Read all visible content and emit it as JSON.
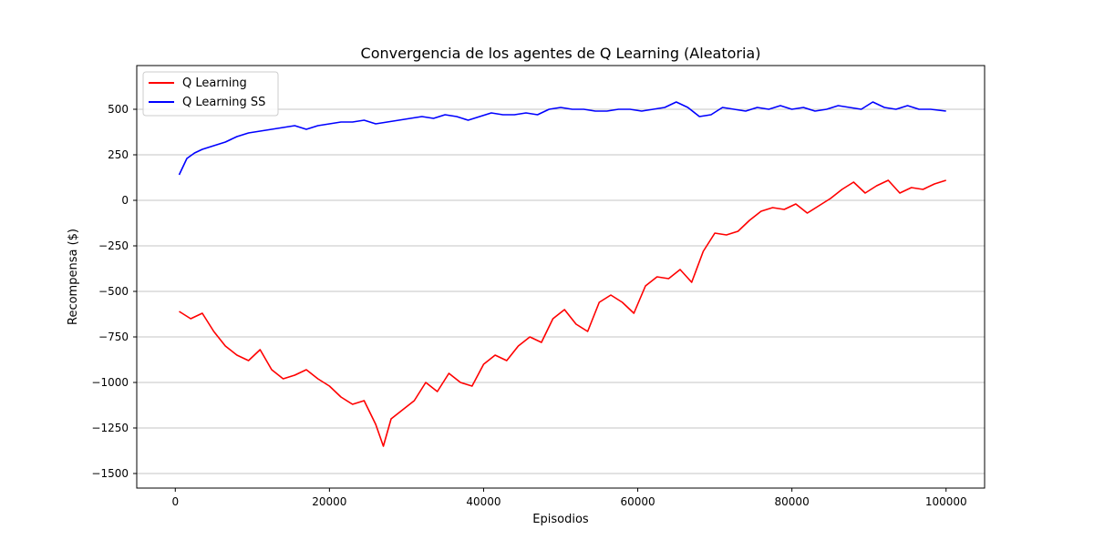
{
  "chart_data": {
    "type": "line",
    "title": "Convergencia de los agentes de Q Learning (Aleatoria)",
    "xlabel": "Episodios",
    "ylabel": "Recompensa ($)",
    "xlim": [
      -5000,
      105000
    ],
    "ylim": [
      -1580,
      740
    ],
    "xticks": [
      0,
      20000,
      40000,
      60000,
      80000,
      100000
    ],
    "xtick_labels": [
      "0",
      "20000",
      "40000",
      "60000",
      "80000",
      "100000"
    ],
    "yticks": [
      -1500,
      -1250,
      -1000,
      -750,
      -500,
      -250,
      0,
      250,
      500
    ],
    "ytick_labels": [
      "−1500",
      "−1250",
      "−1000",
      "−750",
      "−500",
      "−250",
      "0",
      "250",
      "500"
    ],
    "grid": "horizontal",
    "legend": "top-left",
    "series": [
      {
        "name": "Q Learning",
        "color": "#ff0000",
        "x": [
          500,
          2000,
          3500,
          5000,
          6500,
          8000,
          9500,
          11000,
          12500,
          14000,
          15500,
          17000,
          18500,
          20000,
          21500,
          23000,
          24500,
          26000,
          27000,
          28000,
          29500,
          31000,
          32500,
          34000,
          35500,
          37000,
          38500,
          40000,
          41500,
          43000,
          44500,
          46000,
          47500,
          49000,
          50500,
          52000,
          53500,
          55000,
          56500,
          58000,
          59500,
          61000,
          62500,
          64000,
          65500,
          67000,
          68500,
          70000,
          71500,
          73000,
          74500,
          76000,
          77500,
          79000,
          80500,
          82000,
          83500,
          85000,
          86500,
          88000,
          89500,
          91000,
          92500,
          94000,
          95500,
          97000,
          98500,
          100000
        ],
        "y": [
          -610,
          -650,
          -620,
          -720,
          -800,
          -850,
          -880,
          -820,
          -930,
          -980,
          -960,
          -930,
          -980,
          -1020,
          -1080,
          -1120,
          -1100,
          -1230,
          -1350,
          -1200,
          -1150,
          -1100,
          -1000,
          -1050,
          -950,
          -1000,
          -1020,
          -900,
          -850,
          -880,
          -800,
          -750,
          -780,
          -650,
          -600,
          -680,
          -720,
          -560,
          -520,
          -560,
          -620,
          -470,
          -420,
          -430,
          -380,
          -450,
          -280,
          -180,
          -190,
          -170,
          -110,
          -60,
          -40,
          -50,
          -20,
          -70,
          -30,
          10,
          60,
          100,
          40,
          80,
          110,
          40,
          70,
          60,
          90,
          110
        ]
      },
      {
        "name": "Q Learning SS",
        "color": "#0000ff",
        "x": [
          500,
          1500,
          2500,
          3500,
          5000,
          6500,
          8000,
          9500,
          11000,
          12500,
          14000,
          15500,
          17000,
          18500,
          20000,
          21500,
          23000,
          24500,
          26000,
          27500,
          29000,
          30500,
          32000,
          33500,
          35000,
          36500,
          38000,
          39500,
          41000,
          42500,
          44000,
          45500,
          47000,
          48500,
          50000,
          51500,
          53000,
          54500,
          56000,
          57500,
          59000,
          60500,
          62000,
          63500,
          65000,
          66500,
          68000,
          69500,
          71000,
          72500,
          74000,
          75500,
          77000,
          78500,
          80000,
          81500,
          83000,
          84500,
          86000,
          87500,
          89000,
          90500,
          92000,
          93500,
          95000,
          96500,
          98000,
          100000
        ],
        "y": [
          140,
          230,
          260,
          280,
          300,
          320,
          350,
          370,
          380,
          390,
          400,
          410,
          390,
          410,
          420,
          430,
          430,
          440,
          420,
          430,
          440,
          450,
          460,
          450,
          470,
          460,
          440,
          460,
          480,
          470,
          470,
          480,
          470,
          500,
          510,
          500,
          500,
          490,
          490,
          500,
          500,
          490,
          500,
          510,
          540,
          510,
          460,
          470,
          510,
          500,
          490,
          510,
          500,
          520,
          500,
          510,
          490,
          500,
          520,
          510,
          500,
          540,
          510,
          500,
          520,
          500,
          500,
          490
        ]
      }
    ]
  }
}
